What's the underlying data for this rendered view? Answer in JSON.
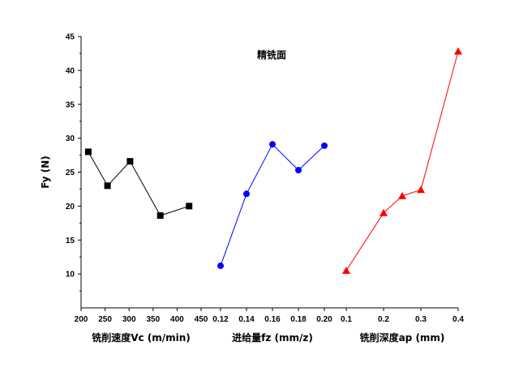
{
  "chart_data": {
    "type": "line",
    "title": "精铣面",
    "ylabel": "Fy (N)",
    "ylim": [
      5,
      45
    ],
    "yticks": [
      "10",
      "15",
      "20",
      "25",
      "30",
      "35",
      "40",
      "45"
    ],
    "grid": false,
    "panels": [
      {
        "xlabel": "铣削速度Vc (m/min)",
        "xlim": [
          200,
          450
        ],
        "xticks": [
          "200",
          "250",
          "300",
          "350",
          "400",
          "450"
        ],
        "color": "#000000",
        "marker": "square",
        "x": [
          215,
          255,
          302,
          365,
          425
        ],
        "y": [
          28.0,
          23.0,
          26.6,
          18.6,
          20.0
        ]
      },
      {
        "xlabel": "进给量fz (mm/z)",
        "xlim": [
          0.12,
          0.2
        ],
        "xticks": [
          "0.12",
          "0.14",
          "0.16",
          "0.18",
          "0.20"
        ],
        "color": "#0000ff",
        "marker": "circle",
        "x": [
          0.12,
          0.14,
          0.16,
          0.18,
          0.2
        ],
        "y": [
          11.2,
          21.8,
          29.1,
          25.3,
          28.9
        ]
      },
      {
        "xlabel": "铣削深度ap (mm)",
        "xlim": [
          0.1,
          0.4
        ],
        "xticks": [
          "0.1",
          "0.2",
          "0.3",
          "0.4"
        ],
        "color": "#ff0000",
        "marker": "triangle",
        "x": [
          0.1,
          0.2,
          0.25,
          0.3,
          0.4
        ],
        "y": [
          10.5,
          19.0,
          21.5,
          22.4,
          42.8
        ]
      }
    ]
  }
}
